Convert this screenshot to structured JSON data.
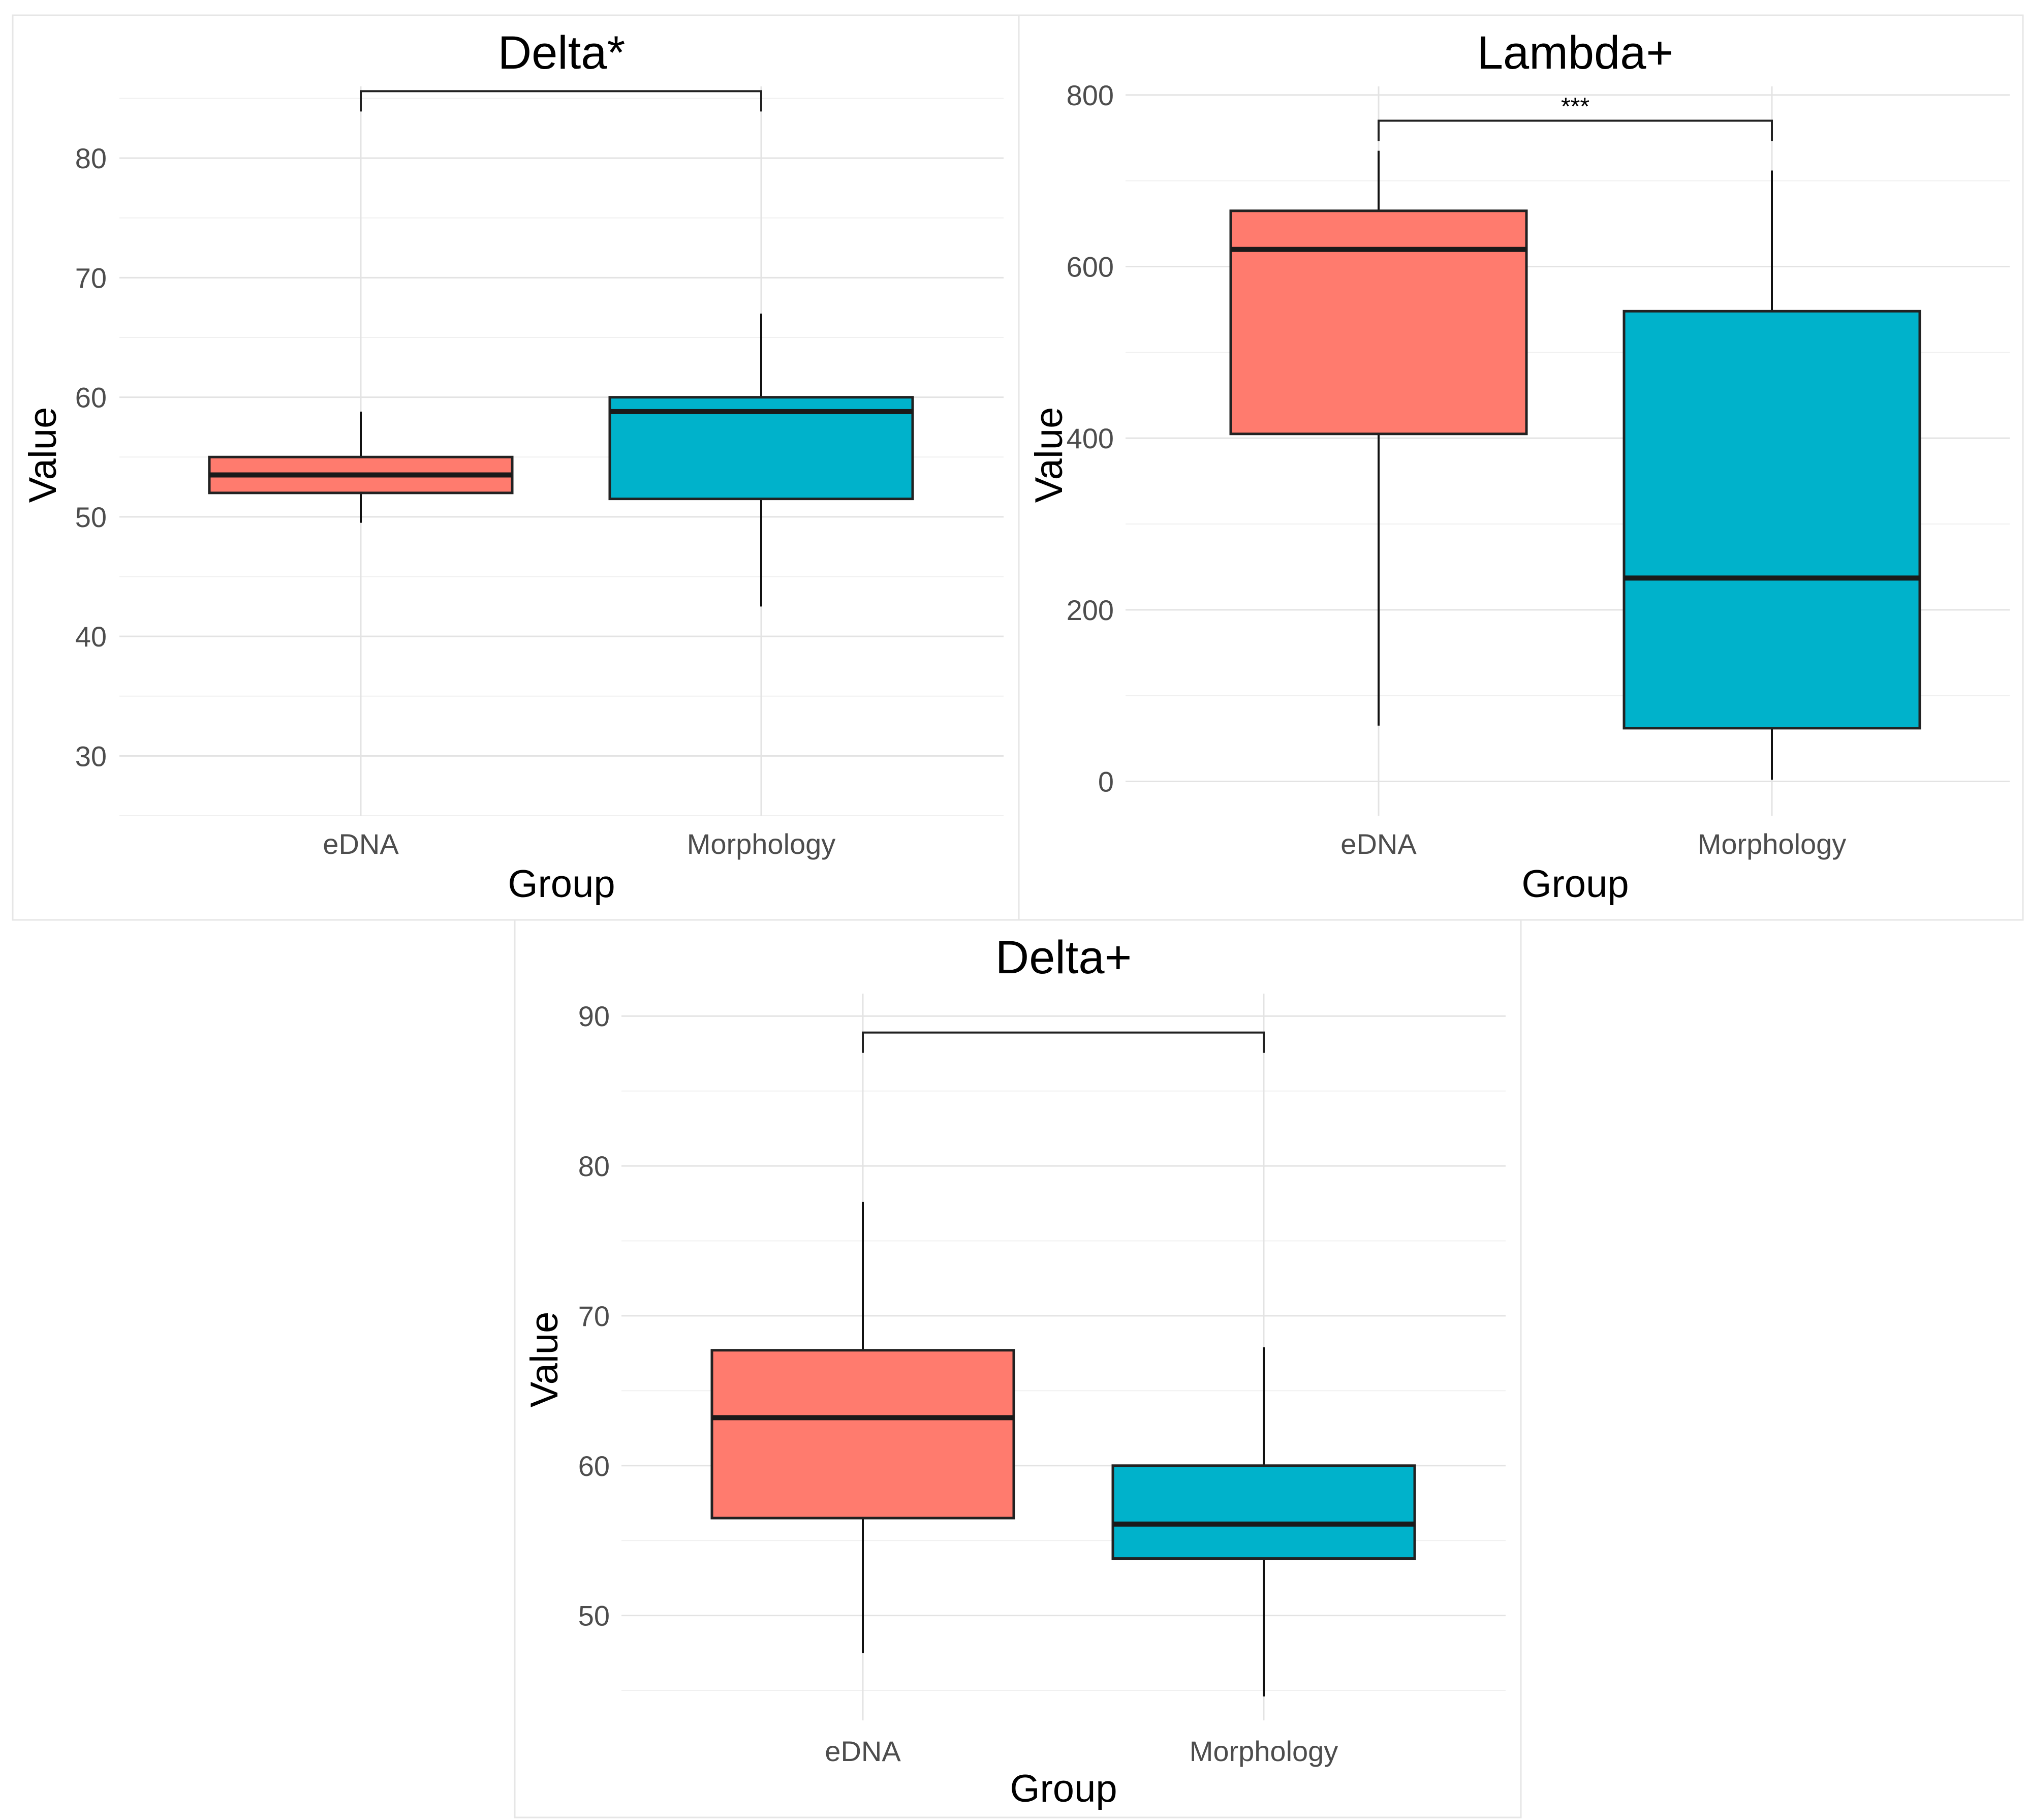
{
  "colors": {
    "eDNA": "#FF7B6E",
    "Morphology": "#00B2CB"
  },
  "chart_data": [
    {
      "type": "boxplot",
      "title": "Delta*",
      "xlabel": "Group",
      "ylabel": "Value",
      "ylim": [
        25,
        86
      ],
      "yticks": [
        30,
        40,
        50,
        60,
        70,
        80
      ],
      "categories": [
        "eDNA",
        "Morphology"
      ],
      "boxes": [
        {
          "group": "eDNA",
          "whisker_low": 49.5,
          "q1": 52,
          "median": 53.5,
          "q3": 55,
          "whisker_high": 58.8
        },
        {
          "group": "Morphology",
          "whisker_low": 42.5,
          "q1": 51.5,
          "median": 58.8,
          "q3": 60,
          "whisker_high": 67
        }
      ],
      "significance": {
        "from": "eDNA",
        "to": "Morphology",
        "y": 85.6,
        "label": ""
      }
    },
    {
      "type": "boxplot",
      "title": "Lambda+",
      "xlabel": "Group",
      "ylabel": "Value",
      "ylim": [
        -40,
        810
      ],
      "yticks": [
        0,
        200,
        400,
        600,
        800
      ],
      "categories": [
        "eDNA",
        "Morphology"
      ],
      "boxes": [
        {
          "group": "eDNA",
          "whisker_low": 65,
          "q1": 405,
          "median": 620,
          "q3": 665,
          "whisker_high": 735
        },
        {
          "group": "Morphology",
          "whisker_low": 2,
          "q1": 62,
          "median": 237,
          "q3": 548,
          "whisker_high": 712
        }
      ],
      "significance": {
        "from": "eDNA",
        "to": "Morphology",
        "y": 770,
        "label": "***"
      }
    },
    {
      "type": "boxplot",
      "title": "Delta+",
      "xlabel": "Group",
      "ylabel": "Value",
      "ylim": [
        43,
        91.5
      ],
      "yticks": [
        50,
        60,
        70,
        80,
        90
      ],
      "categories": [
        "eDNA",
        "Morphology"
      ],
      "boxes": [
        {
          "group": "eDNA",
          "whisker_low": 47.5,
          "q1": 56.5,
          "median": 63.2,
          "q3": 67.7,
          "whisker_high": 77.6
        },
        {
          "group": "Morphology",
          "whisker_low": 44.6,
          "q1": 53.8,
          "median": 56.1,
          "q3": 60,
          "whisker_high": 67.9
        }
      ],
      "significance": {
        "from": "eDNA",
        "to": "Morphology",
        "y": 88.9,
        "label": ""
      }
    }
  ]
}
